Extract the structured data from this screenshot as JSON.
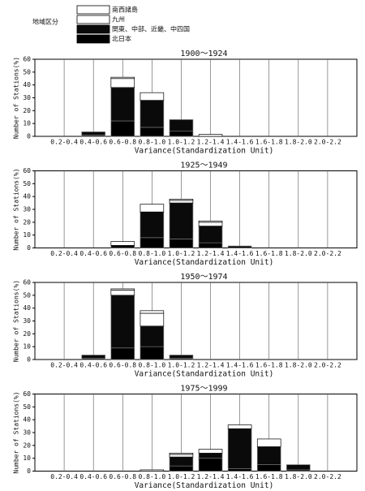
{
  "chart_data": [
    {
      "type": "bar",
      "stacked": true,
      "title": "1900～1924",
      "legend_title": "地域区分",
      "categories": [
        "0.2-0.4",
        "0.4-0.6",
        "0.6-0.8",
        "0.8-1.0",
        "1.0-1.2",
        "1.2-1.4",
        "1.4-1.6",
        "1.6-1.8",
        "1.8-2.0",
        "2.0-2.2"
      ],
      "x_label": "Variance(Standardization Unit)",
      "y_label": "Number of Stations(%)",
      "ylim": [
        0,
        60
      ],
      "yticks": [
        0,
        10,
        20,
        30,
        40,
        50,
        60
      ],
      "grid": "x",
      "series": [
        {
          "name": "北日本",
          "color": "#000000",
          "values": [
            0,
            1,
            12,
            7,
            4,
            0,
            0,
            0,
            0,
            0
          ]
        },
        {
          "name": "関東、中部、近畿、中四国",
          "color": "#0a0a0a",
          "values": [
            0,
            2.5,
            26,
            21,
            9,
            0,
            0,
            0,
            0,
            0
          ]
        },
        {
          "name": "九州",
          "color": "#ffffff",
          "values": [
            0,
            0,
            7,
            6,
            0,
            1.5,
            0,
            0,
            0,
            0
          ]
        },
        {
          "name": "南西諸島",
          "color": "#ffffff",
          "values": [
            0,
            0,
            1,
            0,
            0,
            0,
            0,
            0,
            0,
            0
          ]
        }
      ]
    },
    {
      "type": "bar",
      "stacked": true,
      "title": "1925～1949",
      "categories": [
        "0.2-0.4",
        "0.4-0.6",
        "0.6-0.8",
        "0.8-1.0",
        "1.0-1.2",
        "1.2-1.4",
        "1.4-1.6",
        "1.6-1.8",
        "1.8-2.0",
        "2.0-2.2"
      ],
      "x_label": "Variance(Standardization Unit)",
      "y_label": "Number of Stations(%)",
      "ylim": [
        0,
        60
      ],
      "yticks": [
        0,
        10,
        20,
        30,
        40,
        50,
        60
      ],
      "grid": "x",
      "series": [
        {
          "name": "北日本",
          "color": "#000000",
          "values": [
            0,
            0,
            0,
            8,
            7,
            4,
            0,
            0,
            0,
            0
          ]
        },
        {
          "name": "関東、中部、近畿、中四国",
          "color": "#0a0a0a",
          "values": [
            0,
            0,
            2,
            20,
            28,
            13,
            1.5,
            0,
            0,
            0
          ]
        },
        {
          "name": "九州",
          "color": "#ffffff",
          "values": [
            0,
            0,
            3,
            6,
            2,
            3,
            0,
            0,
            0,
            0
          ]
        },
        {
          "name": "南西諸島",
          "color": "#ffffff",
          "values": [
            0,
            0,
            0,
            0,
            1,
            1,
            0,
            0,
            0,
            0
          ]
        }
      ]
    },
    {
      "type": "bar",
      "stacked": true,
      "title": "1950～1974",
      "categories": [
        "0.2-0.4",
        "0.4-0.6",
        "0.6-0.8",
        "0.8-1.0",
        "1.0-1.2",
        "1.2-1.4",
        "1.4-1.6",
        "1.6-1.8",
        "1.8-2.0",
        "2.0-2.2"
      ],
      "x_label": "Variance(Standardization Unit)",
      "y_label": "Number of Stations(%)",
      "ylim": [
        0,
        60
      ],
      "yticks": [
        0,
        10,
        20,
        30,
        40,
        50,
        60
      ],
      "grid": "x",
      "series": [
        {
          "name": "北日本",
          "color": "#000000",
          "values": [
            0,
            1,
            9,
            10,
            1,
            0,
            0,
            0,
            0,
            0
          ]
        },
        {
          "name": "関東、中部、近畿、中四国",
          "color": "#0a0a0a",
          "values": [
            0,
            2.5,
            41,
            16,
            2.5,
            0,
            0,
            0,
            0,
            0
          ]
        },
        {
          "name": "九州",
          "color": "#ffffff",
          "values": [
            0,
            0,
            4,
            10,
            0,
            0,
            0,
            0,
            0,
            0
          ]
        },
        {
          "name": "南西諸島",
          "color": "#ffffff",
          "values": [
            0,
            0,
            1,
            2,
            0,
            0,
            0,
            0,
            0,
            0
          ]
        }
      ]
    },
    {
      "type": "bar",
      "stacked": true,
      "title": "1975～1999",
      "categories": [
        "0.2-0.4",
        "0.4-0.6",
        "0.6-0.8",
        "0.8-1.0",
        "1.0-1.2",
        "1.2-1.4",
        "1.4-1.6",
        "1.6-1.8",
        "1.8-2.0",
        "2.0-2.2"
      ],
      "x_label": "Variance(Standardization Unit)",
      "y_label": "Number of Stations(%)",
      "ylim": [
        0,
        60
      ],
      "yticks": [
        0,
        10,
        20,
        30,
        40,
        50,
        60
      ],
      "grid": "x",
      "series": [
        {
          "name": "北日本",
          "color": "#000000",
          "values": [
            0,
            0,
            0,
            0,
            4,
            10,
            2,
            5,
            1,
            0
          ]
        },
        {
          "name": "関東、中部、近畿、中四国",
          "color": "#0a0a0a",
          "values": [
            0,
            0,
            0,
            0,
            7,
            4,
            31,
            14,
            4,
            0
          ]
        },
        {
          "name": "九州",
          "color": "#ffffff",
          "values": [
            0,
            0,
            0,
            1,
            2,
            3,
            3,
            6,
            0,
            0
          ]
        },
        {
          "name": "南西諸島",
          "color": "#ffffff",
          "values": [
            0,
            0,
            0,
            0,
            1,
            0,
            0,
            0,
            0,
            0
          ]
        }
      ]
    }
  ]
}
